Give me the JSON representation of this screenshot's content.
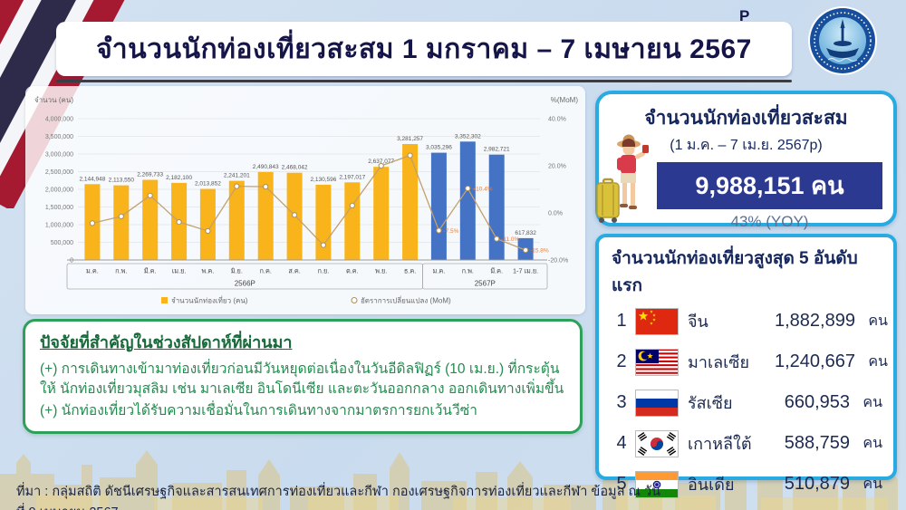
{
  "header": {
    "title": "จำนวนนักท่องเที่ยวสะสม 1 มกราคม – 7 เมษายน 2567",
    "superscript": "P"
  },
  "logo": {
    "name": "ministry-of-tourism-and-sports-seal"
  },
  "chart_data": {
    "type": "bar+line",
    "title": "",
    "left_axis_label": "จำนวน (คน)",
    "right_axis_label": "%(MoM)",
    "categories": [
      "ม.ค.",
      "ก.พ.",
      "มี.ค.",
      "เม.ย.",
      "พ.ค.",
      "มิ.ย.",
      "ก.ค.",
      "ส.ค.",
      "ก.ย.",
      "ต.ค.",
      "พ.ย.",
      "ธ.ค.",
      "ม.ค.",
      "ก.พ.",
      "มี.ค.",
      "1-7 เม.ย."
    ],
    "groups": [
      {
        "label": "2566P",
        "span": 12
      },
      {
        "label": "2567P",
        "span": 4
      }
    ],
    "series": [
      {
        "name": "จำนวนนักท่องเที่ยว (คน)",
        "type": "bar",
        "values": [
          2144948,
          2113550,
          2269733,
          2182100,
          2013852,
          2241201,
          2490843,
          2468042,
          2130596,
          2197017,
          2637077,
          3281257,
          3035296,
          3352302,
          2982721,
          617832
        ],
        "labels": [
          "2,144,948",
          "2,113,550",
          "2,269,733",
          "2,182,100",
          "2,013,852",
          "2,241,201",
          "2,490,843",
          "2,468,042",
          "2,130,596",
          "2,197,017",
          "2,637,077",
          "3,281,257",
          "3,035,296",
          "3,352,302",
          "2,982,721",
          "617,832"
        ],
        "color_2566": "#F9B31B",
        "color_2567": "#4472C4"
      },
      {
        "name": "อัตราการเปลี่ยนแปลง (MoM)",
        "type": "line",
        "values": [
          -4.4,
          -1.5,
          7.4,
          -3.9,
          -7.7,
          11.3,
          11.1,
          -0.9,
          -13.7,
          3.1,
          20.0,
          24.4,
          -7.5,
          10.4,
          -11.0,
          -15.8
        ],
        "visible_point_labels": {
          "12": "-7.5%",
          "13": "+10.4%",
          "14": "-11.0%",
          "15": "-15.8%"
        },
        "line_color": "#c2a06d",
        "label_color": "#ed7d31"
      }
    ],
    "left_ylim": [
      0,
      4000000
    ],
    "left_ticks": [
      "4,000,000",
      "3,500,000",
      "3,000,000",
      "2,500,000",
      "2,000,000",
      "1,500,000",
      "1,000,000",
      "500,000",
      "0"
    ],
    "right_ylim": [
      -20,
      40
    ],
    "right_ticks": [
      "40.0%",
      "20.0%",
      "0.0%",
      "-20.0%"
    ],
    "grid": true,
    "legend_position": "bottom"
  },
  "summary_card": {
    "title": "จำนวนนักท่องเที่ยวสะสม",
    "subtitle": "(1 ม.ค. – 7 เม.ย. 2567p)",
    "total": "9,988,151 คน",
    "yoy": "43% (YOY)",
    "accent_color": "#2b3990",
    "border_color": "#29abe2"
  },
  "top5": {
    "title": "จำนวนนักท่องเที่ยวสูงสุด 5 อันดับแรก",
    "rows": [
      {
        "rank": "1",
        "flag": "china-flag",
        "country": "จีน",
        "value": "1,882,899",
        "unit": "คน"
      },
      {
        "rank": "2",
        "flag": "malaysia-flag",
        "country": "มาเลเซีย",
        "value": "1,240,667",
        "unit": "คน"
      },
      {
        "rank": "3",
        "flag": "russia-flag",
        "country": "รัสเซีย",
        "value": "660,953",
        "unit": "คน"
      },
      {
        "rank": "4",
        "flag": "south-korea-flag",
        "country": "เกาหลีใต้",
        "value": "588,759",
        "unit": "คน"
      },
      {
        "rank": "5",
        "flag": "india-flag",
        "country": "อินเดีย",
        "value": "510,879",
        "unit": "คน"
      }
    ]
  },
  "factors": {
    "title": "ปัจจัยที่สำคัญในช่วงสัปดาห์ที่ผ่านมา",
    "items": [
      "(+) การเดินทางเข้ามาท่องเที่ยวก่อนมีวันหยุดต่อเนื่องในวันอีดิลฟิฏร์ (10 เม.ย.) ที่กระตุ้นให้ นักท่องเที่ยวมุสลิม เช่น มาเลเซีย อินโดนีเซีย และตะวันออกกลาง ออกเดินทางเพิ่มขึ้น",
      "(+) นักท่องเที่ยวได้รับความเชื่อมั่นในการเดินทางจากมาตรการยกเว้นวีซ่า"
    ]
  },
  "source": "ที่มา : กลุ่มสถิติ ดัชนีเศรษฐกิจและสารสนเทศการท่องเที่ยวและกีฬา กองเศรษฐกิจการท่องเที่ยวและกีฬา ข้อมูล ณ วันที่ 9 เมษายน  2567"
}
